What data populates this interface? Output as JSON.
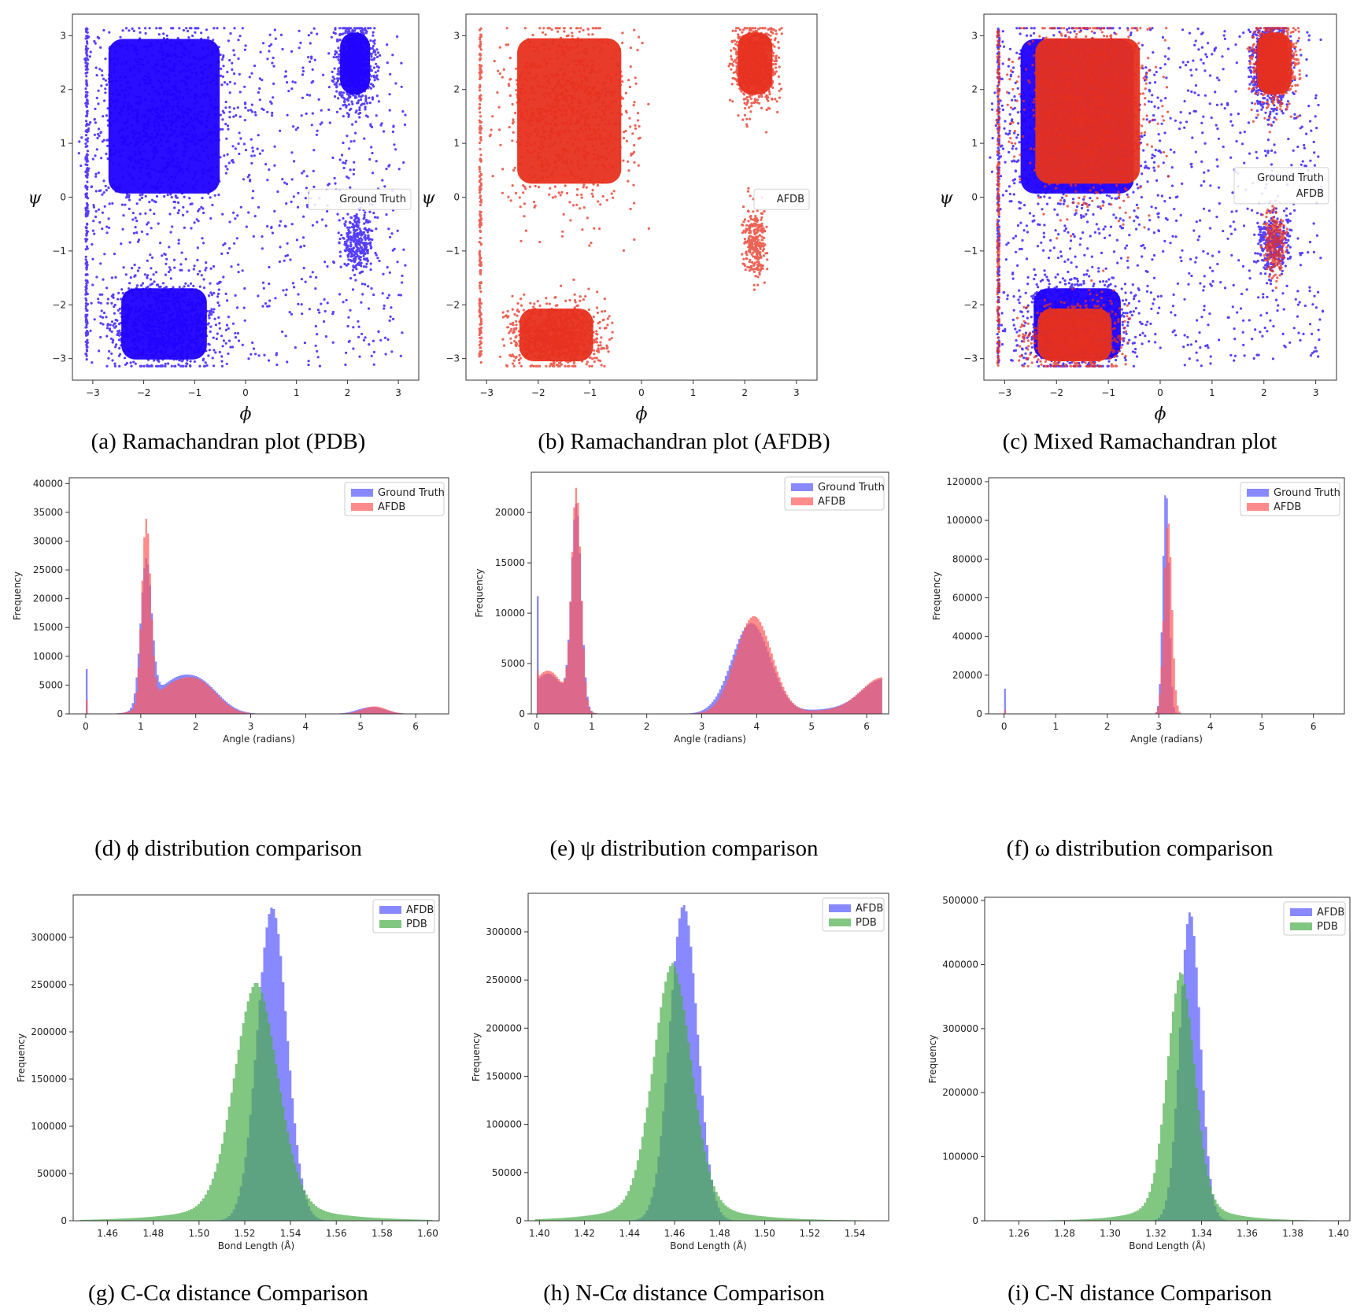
{
  "colors": {
    "ground_truth": "#1f00ff",
    "afdb_scatter": "#e8301e",
    "afdb_hist_red": "#ff5a5a",
    "afdb_hist_blue": "#6b6bff",
    "pdb": "#4cae4c",
    "overlap_gt_afdb": "#b4336c",
    "overlap_afdb_pdb": "#2e7b7e"
  },
  "captions": {
    "a": "(a) Ramachandran plot (PDB)",
    "b": "(b) Ramachandran plot (AFDB)",
    "c": "(c) Mixed Ramachandran plot",
    "d": "(d) ϕ distribution comparison",
    "e": "(e) ψ distribution comparison",
    "f": "(f) ω distribution comparison",
    "g": "(g) C-Cα distance Comparison",
    "h": "(h) N-Cα distance Comparison",
    "i": "(i) C-N distance Comparison"
  },
  "chart_data": [
    {
      "id": "a",
      "type": "scatter",
      "xlabel": "ϕ",
      "ylabel": "ψ",
      "xlim": [
        -3.4,
        3.4
      ],
      "ylim": [
        -3.4,
        3.4
      ],
      "xticks": [
        "-3",
        "-2",
        "-1",
        "0",
        "1",
        "2",
        "3"
      ],
      "yticks": [
        "-3",
        "-2",
        "-1",
        "0",
        "1",
        "2",
        "3"
      ],
      "legend": [
        "Ground Truth"
      ],
      "legend_position": "center-right",
      "series": [
        {
          "name": "Ground Truth",
          "color": "#1f00ff",
          "regions": [
            {
              "phi": [
                -2.9,
                -0.3
              ],
              "psi": [
                -0.2,
                3.14
              ],
              "density": "dense"
            },
            {
              "phi": [
                -2.6,
                -0.6
              ],
              "psi": [
                -3.14,
                -1.6
              ],
              "density": "dense"
            },
            {
              "phi": [
                1.8,
                2.5
              ],
              "psi": [
                1.8,
                3.14
              ],
              "density": "dense"
            },
            {
              "phi": [
                1.9,
                2.5
              ],
              "psi": [
                -1.3,
                -0.4
              ],
              "density": "medium"
            },
            {
              "phi": [
                -3.14,
                -3.1
              ],
              "psi": [
                -3.14,
                3.14
              ],
              "density": "line"
            },
            {
              "phi": [
                -3.14,
                3.14
              ],
              "psi": [
                -3.14,
                3.14
              ],
              "density": "sparse"
            }
          ]
        }
      ]
    },
    {
      "id": "b",
      "type": "scatter",
      "xlabel": "ϕ",
      "ylabel": "ψ",
      "xlim": [
        -3.4,
        3.4
      ],
      "ylim": [
        -3.4,
        3.4
      ],
      "xticks": [
        "-3",
        "-2",
        "-1",
        "0",
        "1",
        "2",
        "3"
      ],
      "yticks": [
        "-3",
        "-2",
        "-1",
        "0",
        "1",
        "2",
        "3"
      ],
      "legend": [
        "AFDB"
      ],
      "legend_position": "center-right",
      "series": [
        {
          "name": "AFDB",
          "color": "#e8301e",
          "regions": [
            {
              "phi": [
                -2.6,
                -0.2
              ],
              "psi": [
                0.0,
                3.14
              ],
              "density": "dense"
            },
            {
              "phi": [
                -2.5,
                -0.8
              ],
              "psi": [
                -3.14,
                -2.0
              ],
              "density": "dense"
            },
            {
              "phi": [
                1.8,
                2.6
              ],
              "psi": [
                1.8,
                3.14
              ],
              "density": "dense"
            },
            {
              "phi": [
                2.0,
                2.4
              ],
              "psi": [
                -1.4,
                -0.3
              ],
              "density": "medium"
            },
            {
              "phi": [
                -3.14,
                -3.1
              ],
              "psi": [
                -3.14,
                3.14
              ],
              "density": "line"
            }
          ]
        }
      ]
    },
    {
      "id": "c",
      "type": "scatter",
      "xlabel": "ϕ",
      "ylabel": "ψ",
      "xlim": [
        -3.4,
        3.4
      ],
      "ylim": [
        -3.4,
        3.4
      ],
      "xticks": [
        "-3",
        "-2",
        "-1",
        "0",
        "1",
        "2",
        "3"
      ],
      "yticks": [
        "-3",
        "-2",
        "-1",
        "0",
        "1",
        "2",
        "3"
      ],
      "legend": [
        "Ground Truth",
        "AFDB"
      ],
      "legend_position": "center-right",
      "series": [
        {
          "name": "Ground Truth",
          "color": "#1f00ff"
        },
        {
          "name": "AFDB",
          "color": "#e8301e"
        }
      ]
    },
    {
      "id": "d",
      "type": "histogram",
      "xlabel": "Angle (radians)",
      "ylabel": "Frequency",
      "xlim": [
        -0.3,
        6.6
      ],
      "ylim": [
        0,
        41000
      ],
      "xticks": [
        0,
        1,
        2,
        3,
        4,
        5,
        6
      ],
      "yticks": [
        0,
        5000,
        10000,
        15000,
        20000,
        25000,
        30000,
        35000,
        40000
      ],
      "legend": [
        "Ground Truth",
        "AFDB"
      ],
      "legend_position": "top-right",
      "peaks_gt": [
        [
          0.0,
          7800,
          0.01
        ],
        [
          1.1,
          25000,
          0.1
        ],
        [
          1.55,
          4500,
          0.35
        ],
        [
          2.1,
          4800,
          0.35
        ],
        [
          5.2,
          1200,
          0.25
        ]
      ],
      "peaks_afdb": [
        [
          0.0,
          2400,
          0.01
        ],
        [
          1.1,
          32000,
          0.08
        ],
        [
          1.55,
          4200,
          0.35
        ],
        [
          2.1,
          4600,
          0.33
        ],
        [
          5.25,
          1300,
          0.22
        ]
      ],
      "zero_spike": {
        "gt": 7800,
        "afdb": 2400
      }
    },
    {
      "id": "e",
      "type": "histogram",
      "xlabel": "Angle (radians)",
      "ylabel": "Frequency",
      "xlim": [
        -0.1,
        6.4
      ],
      "ylim": [
        0,
        24000
      ],
      "xticks": [
        0,
        1,
        2,
        3,
        4,
        5,
        6
      ],
      "yticks": [
        0,
        5000,
        10000,
        15000,
        20000
      ],
      "legend": [
        "Ground Truth",
        "AFDB"
      ],
      "legend_position": "top-right",
      "peaks_gt": [
        [
          0.2,
          4000,
          0.3
        ],
        [
          0.72,
          20000,
          0.09
        ],
        [
          3.9,
          9000,
          0.35
        ],
        [
          6.3,
          3400,
          0.4
        ],
        [
          5.3,
          400,
          0.5
        ]
      ],
      "peaks_afdb": [
        [
          0.2,
          4300,
          0.3
        ],
        [
          0.72,
          21500,
          0.085
        ],
        [
          3.95,
          9700,
          0.33
        ],
        [
          6.3,
          3600,
          0.4
        ],
        [
          5.3,
          300,
          0.5
        ]
      ],
      "zero_spike": {
        "gt": 11700,
        "afdb": 4300
      }
    },
    {
      "id": "f",
      "type": "histogram",
      "xlabel": "Angle (radians)",
      "ylabel": "Frequency",
      "xlim": [
        -0.3,
        6.6
      ],
      "ylim": [
        0,
        122000
      ],
      "xticks": [
        0,
        1,
        2,
        3,
        4,
        5,
        6
      ],
      "yticks": [
        0,
        20000,
        40000,
        60000,
        80000,
        100000,
        120000
      ],
      "legend": [
        "Ground Truth",
        "AFDB"
      ],
      "legend_position": "top-right",
      "peaks_gt": [
        [
          3.14,
          117000,
          0.06
        ]
      ],
      "peaks_afdb": [
        [
          3.18,
          100000,
          0.075
        ]
      ],
      "zero_spike": {
        "gt": 13000,
        "afdb": 2000
      }
    },
    {
      "id": "g",
      "type": "histogram",
      "xlabel": "Bond Length (Å)",
      "ylabel": "Frequency",
      "xlim": [
        1.445,
        1.605
      ],
      "ylim": [
        0,
        345000
      ],
      "xticks": [
        1.46,
        1.48,
        1.5,
        1.52,
        1.54,
        1.56,
        1.58,
        1.6
      ],
      "xticklabels": [
        "1.46",
        "1.48",
        "1.50",
        "1.52",
        "1.54",
        "1.56",
        "1.58",
        "1.60"
      ],
      "yticks": [
        0,
        50000,
        100000,
        150000,
        200000,
        250000,
        300000
      ],
      "legend": [
        "AFDB",
        "PDB"
      ],
      "legend_position": "top-right",
      "afdb": {
        "mean": 1.532,
        "peak": 332000,
        "sd": 0.0065
      },
      "pdb": {
        "mean": 1.525,
        "peak": 253000,
        "sd": 0.0095,
        "tail": true
      }
    },
    {
      "id": "h",
      "type": "histogram",
      "xlabel": "Bond Length (Å)",
      "ylabel": "Frequency",
      "xlim": [
        1.395,
        1.555
      ],
      "ylim": [
        0,
        340000
      ],
      "xticks": [
        1.4,
        1.42,
        1.44,
        1.46,
        1.48,
        1.5,
        1.52,
        1.54
      ],
      "xticklabels": [
        "1.40",
        "1.42",
        "1.44",
        "1.46",
        "1.48",
        "1.50",
        "1.52",
        "1.54"
      ],
      "yticks": [
        0,
        50000,
        100000,
        150000,
        200000,
        250000,
        300000
      ],
      "legend": [
        "AFDB",
        "PDB"
      ],
      "legend_position": "top-right",
      "afdb": {
        "mean": 1.464,
        "peak": 328000,
        "sd": 0.0062
      },
      "pdb": {
        "mean": 1.459,
        "peak": 268000,
        "sd": 0.0085,
        "tail": true
      }
    },
    {
      "id": "i",
      "type": "histogram",
      "xlabel": "Bond Length (Å)",
      "ylabel": "Frequency",
      "xlim": [
        1.245,
        1.405
      ],
      "ylim": [
        0,
        505000
      ],
      "xticks": [
        1.26,
        1.28,
        1.3,
        1.32,
        1.34,
        1.36,
        1.38,
        1.4
      ],
      "xticklabels": [
        "1.26",
        "1.28",
        "1.30",
        "1.32",
        "1.34",
        "1.36",
        "1.38",
        "1.40"
      ],
      "yticks": [
        0,
        100000,
        200000,
        300000,
        400000,
        500000
      ],
      "legend": [
        "AFDB",
        "PDB"
      ],
      "legend_position": "top-right",
      "afdb": {
        "mean": 1.335,
        "peak": 482000,
        "sd": 0.0045
      },
      "pdb": {
        "mean": 1.331,
        "peak": 390000,
        "sd": 0.006,
        "tail": true
      }
    }
  ]
}
